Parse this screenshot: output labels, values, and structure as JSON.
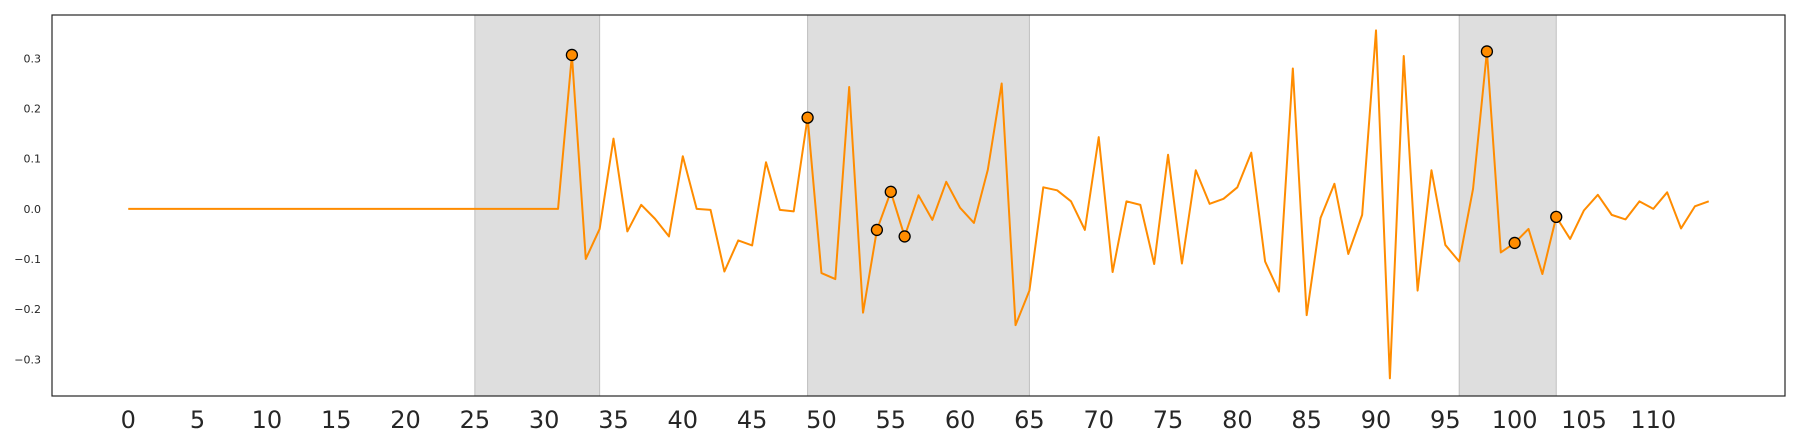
{
  "chart_data": {
    "type": "line",
    "title": "",
    "xlabel": "",
    "ylabel": "",
    "xlim": [
      -5.5,
      119.5
    ],
    "ylim": [
      -0.3733,
      0.3867
    ],
    "grid": false,
    "xticks": [
      0,
      5,
      10,
      15,
      20,
      25,
      30,
      35,
      40,
      45,
      50,
      55,
      60,
      65,
      70,
      75,
      80,
      85,
      90,
      95,
      100,
      105,
      110
    ],
    "xtick_labels": [
      "0",
      "5",
      "10",
      "15",
      "20",
      "25",
      "30",
      "35",
      "40",
      "45",
      "50",
      "55",
      "60",
      "65",
      "70",
      "75",
      "80",
      "85",
      "90",
      "95",
      "100",
      "105",
      "110"
    ],
    "yticks": [
      -0.3,
      -0.2,
      -0.1,
      0.0,
      0.1,
      0.2,
      0.3
    ],
    "ytick_labels": [
      "−0.3",
      "−0.2",
      "−0.1",
      "0.0",
      "0.1",
      "0.2",
      "0.3"
    ],
    "line_color": "#ff8c00",
    "marker_fill": "#ff8c00",
    "marker_edge": "#000000",
    "shade_color": "#d3d3d3",
    "shaded_regions": [
      [
        25,
        34
      ],
      [
        49,
        65
      ],
      [
        96,
        103
      ]
    ],
    "series": [
      {
        "x": [
          0,
          1,
          2,
          3,
          4,
          5,
          6,
          7,
          8,
          9,
          10,
          11,
          12,
          13,
          14,
          15,
          16,
          17,
          18,
          19,
          20,
          21,
          22,
          23,
          24,
          25,
          26,
          27,
          28,
          29,
          30,
          31,
          32,
          33,
          34,
          35,
          36,
          37,
          38,
          39,
          40,
          41,
          42,
          43,
          44,
          45,
          46,
          47,
          48,
          49,
          50,
          51,
          52,
          53,
          54,
          55,
          56,
          57,
          58,
          59,
          60,
          61,
          62,
          63,
          64,
          65,
          66,
          67,
          68,
          69,
          70,
          71,
          72,
          73,
          74,
          75,
          76,
          77,
          78,
          79,
          80,
          81,
          82,
          83,
          84,
          85,
          86,
          87,
          88,
          89,
          90,
          91,
          92,
          93,
          94,
          95,
          96,
          97,
          98,
          99,
          100,
          101,
          102,
          103,
          104,
          105,
          106,
          107,
          108,
          109,
          110,
          111,
          112,
          113,
          114
        ],
        "y": [
          0,
          0,
          0,
          0,
          0,
          0,
          0,
          0,
          0,
          0,
          0,
          0,
          0,
          0,
          0,
          0,
          0,
          0,
          0,
          0,
          0,
          0,
          0,
          0,
          0,
          0,
          0,
          0,
          0,
          0,
          0,
          0,
          0.307,
          -0.1,
          -0.04,
          0.14,
          -0.045,
          0.008,
          -0.02,
          -0.055,
          0.105,
          0,
          -0.002,
          -0.125,
          -0.063,
          -0.073,
          0.093,
          -0.002,
          -0.005,
          0.182,
          -0.128,
          -0.14,
          0.243,
          -0.207,
          -0.042,
          0.034,
          -0.055,
          0.027,
          -0.022,
          0.054,
          0.002,
          -0.028,
          0.078,
          0.25,
          -0.232,
          -0.163,
          0.043,
          0.037,
          0.015,
          -0.042,
          0.143,
          -0.126,
          0.015,
          0.008,
          -0.11,
          0.108,
          -0.109,
          0.077,
          0.01,
          0.02,
          0.043,
          0.112,
          -0.105,
          -0.165,
          0.28,
          -0.212,
          -0.018,
          0.05,
          -0.09,
          -0.012,
          0.356,
          -0.338,
          0.305,
          -0.163,
          0.077,
          -0.072,
          -0.105,
          0.04,
          0.314,
          -0.087,
          -0.068,
          -0.04,
          -0.13,
          -0.016,
          -0.06,
          -0.003,
          0.028,
          -0.012,
          -0.021,
          0.015,
          0,
          0.033,
          -0.039,
          0.005,
          0.015
        ]
      }
    ],
    "markers": {
      "x": [
        32,
        49,
        54,
        55,
        56,
        98,
        100,
        103
      ],
      "y": [
        0.307,
        0.182,
        -0.042,
        0.034,
        -0.055,
        0.314,
        -0.068,
        -0.016
      ]
    }
  }
}
